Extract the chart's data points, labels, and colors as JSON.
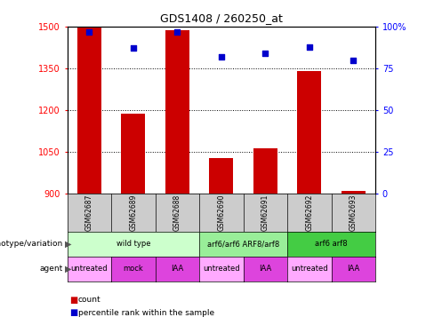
{
  "title": "GDS1408 / 260250_at",
  "samples": [
    "GSM62687",
    "GSM62689",
    "GSM62688",
    "GSM62690",
    "GSM62691",
    "GSM62692",
    "GSM62693"
  ],
  "counts": [
    1497,
    1188,
    1487,
    1025,
    1063,
    1340,
    908
  ],
  "percentiles": [
    97,
    87,
    97,
    82,
    84,
    88,
    80
  ],
  "y_min": 900,
  "y_max": 1500,
  "y_ticks": [
    900,
    1050,
    1200,
    1350,
    1500
  ],
  "y2_ticks": [
    0,
    25,
    50,
    75,
    100
  ],
  "bar_color": "#cc0000",
  "dot_color": "#0000cc",
  "genotype_groups": [
    {
      "label": "wild type",
      "start": 0,
      "end": 3,
      "color": "#ccffcc"
    },
    {
      "label": "arf6/arf6 ARF8/arf8",
      "start": 3,
      "end": 5,
      "color": "#99ee99"
    },
    {
      "label": "arf6 arf8",
      "start": 5,
      "end": 7,
      "color": "#44cc44"
    }
  ],
  "agent_groups": [
    {
      "label": "untreated",
      "start": 0,
      "end": 1,
      "color": "#ffaaff"
    },
    {
      "label": "mock",
      "start": 1,
      "end": 2,
      "color": "#dd44dd"
    },
    {
      "label": "IAA",
      "start": 2,
      "end": 3,
      "color": "#dd44dd"
    },
    {
      "label": "untreated",
      "start": 3,
      "end": 4,
      "color": "#ffaaff"
    },
    {
      "label": "IAA",
      "start": 4,
      "end": 5,
      "color": "#dd44dd"
    },
    {
      "label": "untreated",
      "start": 5,
      "end": 6,
      "color": "#ffaaff"
    },
    {
      "label": "IAA",
      "start": 6,
      "end": 7,
      "color": "#dd44dd"
    }
  ],
  "header_color": "#cccccc",
  "legend_items": [
    {
      "label": "count",
      "color": "#cc0000"
    },
    {
      "label": "percentile rank within the sample",
      "color": "#0000cc"
    }
  ]
}
